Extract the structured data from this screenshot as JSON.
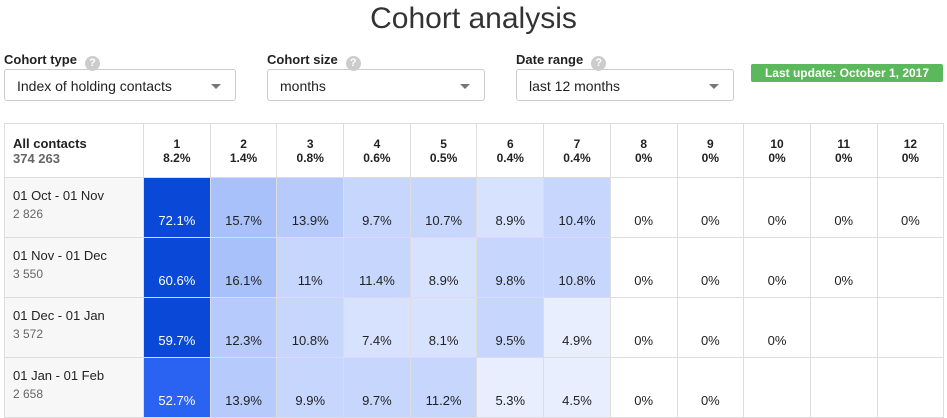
{
  "header": {
    "title": "Cohort analysis"
  },
  "controls": [
    {
      "label": "Cohort type",
      "value": "Index of holding contacts"
    },
    {
      "label": "Cohort size",
      "value": "months"
    },
    {
      "label": "Date range",
      "value": "last 12 months"
    }
  ],
  "badge": "Last update: October 1, 2017",
  "table": {
    "corner": {
      "label": "All contacts",
      "count": "374 263"
    },
    "columns": [
      {
        "label": "1",
        "total": "8.2%"
      },
      {
        "label": "2",
        "total": "1.4%"
      },
      {
        "label": "3",
        "total": "0.8%"
      },
      {
        "label": "4",
        "total": "0.6%"
      },
      {
        "label": "5",
        "total": "0.5%"
      },
      {
        "label": "6",
        "total": "0.4%"
      },
      {
        "label": "7",
        "total": "0.4%"
      },
      {
        "label": "8",
        "total": "0%"
      },
      {
        "label": "9",
        "total": "0%"
      },
      {
        "label": "10",
        "total": "0%"
      },
      {
        "label": "11",
        "total": "0%"
      },
      {
        "label": "12",
        "total": "0%"
      }
    ],
    "rows": [
      {
        "label": "01 Oct - 01 Nov",
        "count": "2 826",
        "cells": [
          "72.1%",
          "15.7%",
          "13.9%",
          "9.7%",
          "10.7%",
          "8.9%",
          "10.4%",
          "0%",
          "0%",
          "0%",
          "0%",
          "0%"
        ]
      },
      {
        "label": "01 Nov - 01 Dec",
        "count": "3 550",
        "cells": [
          "60.6%",
          "16.1%",
          "11%",
          "11.4%",
          "8.9%",
          "9.8%",
          "10.8%",
          "0%",
          "0%",
          "0%",
          "0%"
        ]
      },
      {
        "label": "01 Dec - 01 Jan",
        "count": "3 572",
        "cells": [
          "59.7%",
          "12.3%",
          "10.8%",
          "7.4%",
          "8.1%",
          "9.5%",
          "4.9%",
          "0%",
          "0%",
          "0%"
        ]
      },
      {
        "label": "01 Jan - 01 Feb",
        "count": "2 658",
        "cells": [
          "52.7%",
          "13.9%",
          "9.9%",
          "9.7%",
          "11.2%",
          "5.3%",
          "4.5%",
          "0%",
          "0%"
        ]
      }
    ]
  }
}
